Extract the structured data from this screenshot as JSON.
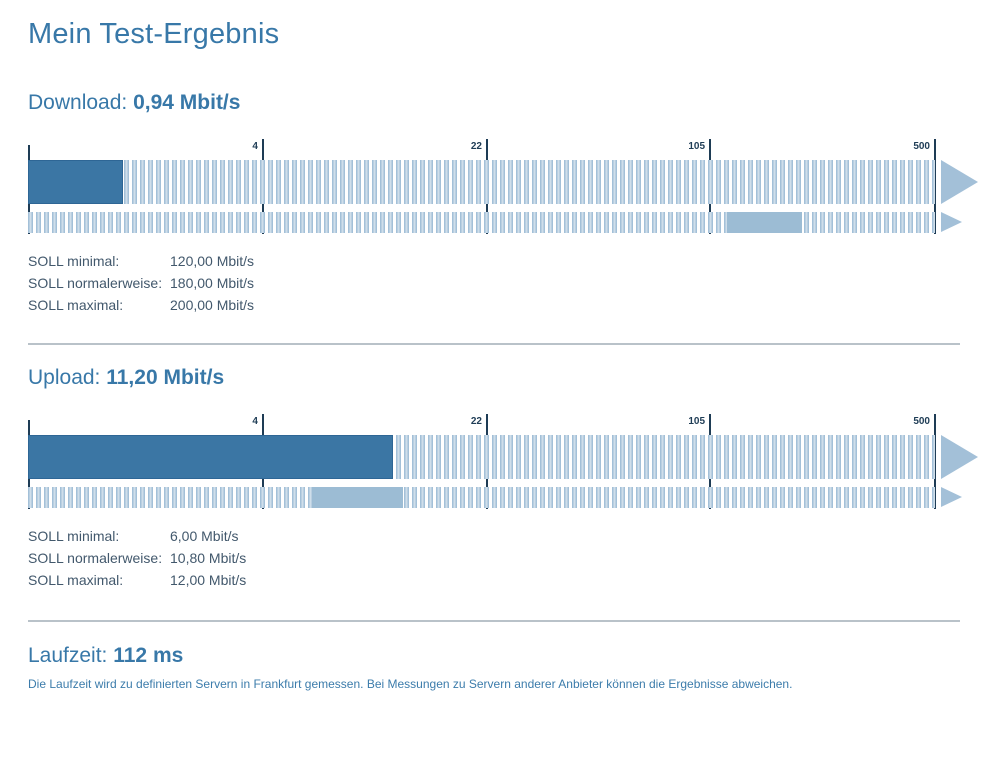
{
  "page": {
    "title": "Mein Test-Ergebnis"
  },
  "sections": {
    "download": {
      "label": "Download:",
      "value": "0,94 Mbit/s",
      "soll": [
        {
          "label": "SOLL minimal:",
          "value": "120,00 Mbit/s"
        },
        {
          "label": "SOLL normalerweise:",
          "value": "180,00 Mbit/s"
        },
        {
          "label": "SOLL maximal:",
          "value": "200,00 Mbit/s"
        }
      ]
    },
    "upload": {
      "label": "Upload:",
      "value": "11,20 Mbit/s",
      "soll": [
        {
          "label": "SOLL minimal:",
          "value": "6,00 Mbit/s"
        },
        {
          "label": "SOLL normalerweise:",
          "value": "10,80 Mbit/s"
        },
        {
          "label": "SOLL maximal:",
          "value": "12,00 Mbit/s"
        }
      ]
    }
  },
  "laufzeit": {
    "label": "Laufzeit:",
    "value": "112 ms",
    "note": "Die Laufzeit wird zu definierten Servern in Frankfurt gemessen. Bei Messungen zu Servern anderer Anbieter können die Ergebnisse abweichen."
  },
  "colors": {
    "heading_blue": "#3878a8",
    "gauge_fill": "#3b76a4",
    "gauge_range": "#9cbcd4",
    "stripe": "#a3c0d8",
    "stripe_light": "#cfdeea",
    "tick_dark": "#1e3c55",
    "text_slate": "#42586c",
    "divider_gray": "#b9c2c9"
  },
  "chart_data": [
    {
      "type": "bar",
      "name": "download-gauge",
      "title": "Download",
      "measured_mbits": 0.94,
      "unit": "Mbit/s",
      "scale": "logarithmic",
      "tick_labels": [
        "4",
        "22",
        "105",
        "500"
      ],
      "tick_values": [
        4,
        22,
        105,
        500
      ],
      "soll_range_mbits": [
        120,
        200
      ],
      "render": {
        "tick_pcts": [
          25.9,
          50.6,
          75.2,
          100
        ],
        "fill_pct": 10.5,
        "range_start_pct": 77.1,
        "range_width_pct": 8.2
      }
    },
    {
      "type": "bar",
      "name": "upload-gauge",
      "title": "Upload",
      "measured_mbits": 11.2,
      "unit": "Mbit/s",
      "scale": "logarithmic",
      "tick_labels": [
        "4",
        "22",
        "105",
        "500"
      ],
      "tick_values": [
        4,
        22,
        105,
        500
      ],
      "soll_range_mbits": [
        6,
        12
      ],
      "render": {
        "tick_pcts": [
          25.9,
          50.6,
          75.2,
          100
        ],
        "fill_pct": 40.2,
        "range_start_pct": 31.3,
        "range_width_pct": 10.0
      }
    }
  ]
}
